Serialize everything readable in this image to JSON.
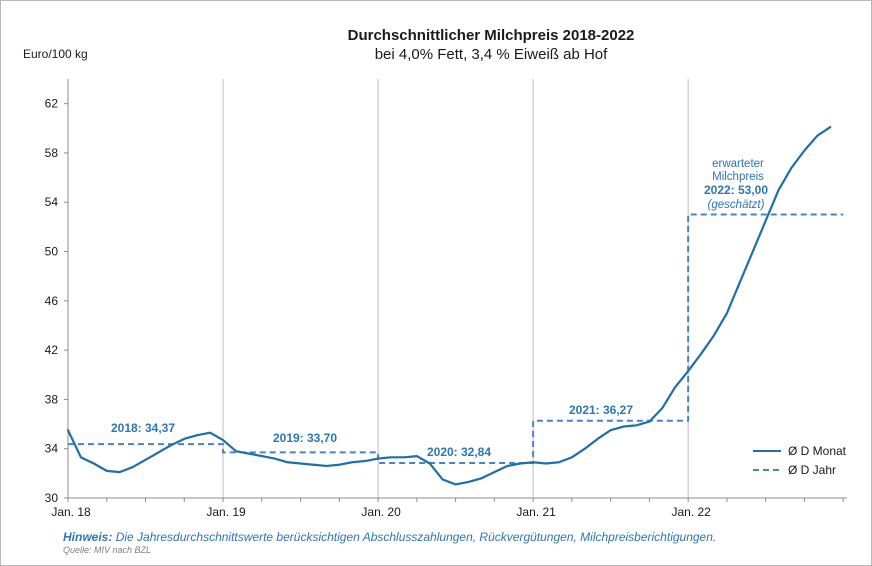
{
  "chart_data": {
    "type": "line",
    "title": "Durchschnittlicher Milchpreis 2018-2022",
    "subtitle": "bei 4,0% Fett, 3,4 % Eiweiß ab Hof",
    "ylabel": "Euro/100 kg",
    "ylim": [
      30,
      64
    ],
    "yticks": [
      30,
      34,
      38,
      42,
      46,
      50,
      54,
      58,
      62
    ],
    "xticks": [
      "Jan. 18",
      "Jan. 19",
      "Jan. 20",
      "Jan. 21",
      "Jan. 22"
    ],
    "x_unit": "month index from Jan. 2018",
    "grid": "vertical lines at year starts",
    "legend_position": "bottom-right",
    "series": [
      {
        "name": "Ø D Monat",
        "style": "solid",
        "color": "#1f6fa8",
        "x": [
          0,
          1,
          2,
          3,
          4,
          5,
          6,
          7,
          8,
          9,
          10,
          11,
          12,
          13,
          14,
          15,
          16,
          17,
          18,
          19,
          20,
          21,
          22,
          23,
          24,
          25,
          26,
          27,
          28,
          29,
          30,
          31,
          32,
          33,
          34,
          35,
          36,
          37,
          38,
          39,
          40,
          41,
          42,
          43,
          44,
          45,
          46,
          47,
          48,
          49,
          50,
          51,
          52,
          53,
          54,
          55,
          56,
          57,
          58,
          59
        ],
        "values": [
          35.5,
          33.3,
          32.8,
          32.2,
          32.1,
          32.5,
          33.1,
          33.7,
          34.3,
          34.8,
          35.1,
          35.3,
          34.7,
          33.8,
          33.6,
          33.4,
          33.2,
          32.9,
          32.8,
          32.7,
          32.6,
          32.7,
          32.9,
          33.0,
          33.2,
          33.3,
          33.3,
          33.4,
          32.8,
          31.5,
          31.1,
          31.3,
          31.6,
          32.1,
          32.6,
          32.8,
          32.9,
          32.8,
          32.9,
          33.3,
          34.0,
          34.8,
          35.5,
          35.8,
          35.9,
          36.2,
          37.3,
          39.0,
          40.3,
          41.7,
          43.2,
          45.0,
          47.5,
          50.0,
          52.5,
          55.0,
          56.8,
          58.2,
          59.4,
          60.1
        ]
      },
      {
        "name": "Ø D Jahr",
        "style": "dashed",
        "color": "#4a82c3",
        "x": [
          0,
          12,
          12,
          24,
          24,
          36,
          36,
          48,
          48,
          60
        ],
        "values": [
          34.37,
          34.37,
          33.7,
          33.7,
          32.84,
          32.84,
          36.27,
          36.27,
          53.0,
          53.0
        ]
      }
    ],
    "annotations": [
      {
        "text": "2018: 34,37"
      },
      {
        "text": "2019: 33,70"
      },
      {
        "text": "2020: 32,84"
      },
      {
        "text": "2021: 36,27"
      },
      {
        "text": "erwarteter"
      },
      {
        "text": "Milchpreis"
      },
      {
        "text": "2022: 53,00"
      },
      {
        "text": "(geschätzt)"
      }
    ]
  },
  "note": {
    "label": "Hinweis:",
    "text": "Die Jahresdurchschnittswerte berücksichtigen Abschlusszahlungen, Rückvergütungen, Milchpreisberichtigungen."
  },
  "source": "Quelle: MIV nach BZL",
  "legend": {
    "monthly": "Ø D Monat",
    "yearly": "Ø D Jahr"
  },
  "colors": {
    "monthly_line": "#1f6fa8",
    "yearly_line": "#4a82c3",
    "annotation": "#2e75b6"
  }
}
